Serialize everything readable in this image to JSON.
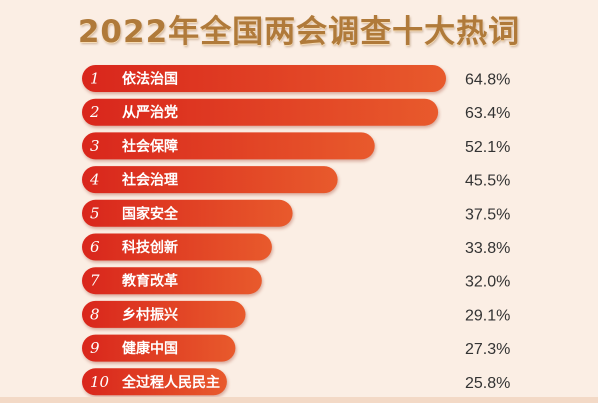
{
  "chart_data": {
    "type": "bar",
    "orientation": "horizontal",
    "title": "2022年全国两会调查十大热词",
    "ranks": [
      "1",
      "2",
      "3",
      "4",
      "5",
      "6",
      "7",
      "8",
      "9",
      "10"
    ],
    "categories": [
      "依法治国",
      "从严治党",
      "社会保障",
      "社会治理",
      "国家安全",
      "科技创新",
      "教育改革",
      "乡村振兴",
      "健康中国",
      "全过程人民民主"
    ],
    "values": [
      64.8,
      63.4,
      52.1,
      45.5,
      37.5,
      33.8,
      32.0,
      29.1,
      27.3,
      25.8
    ],
    "value_labels": [
      "64.8%",
      "63.4%",
      "52.1%",
      "45.5%",
      "37.5%",
      "33.8%",
      "32.0%",
      "29.1%",
      "27.3%",
      "25.8%"
    ],
    "xlim": [
      0,
      100
    ],
    "grid": false,
    "legend": "none",
    "colors": {
      "bar_start": "#d9261c",
      "bar_end": "#e85a2c",
      "title": "#b07a3a",
      "background": "#fbeee4",
      "value_text": "#333333"
    }
  }
}
